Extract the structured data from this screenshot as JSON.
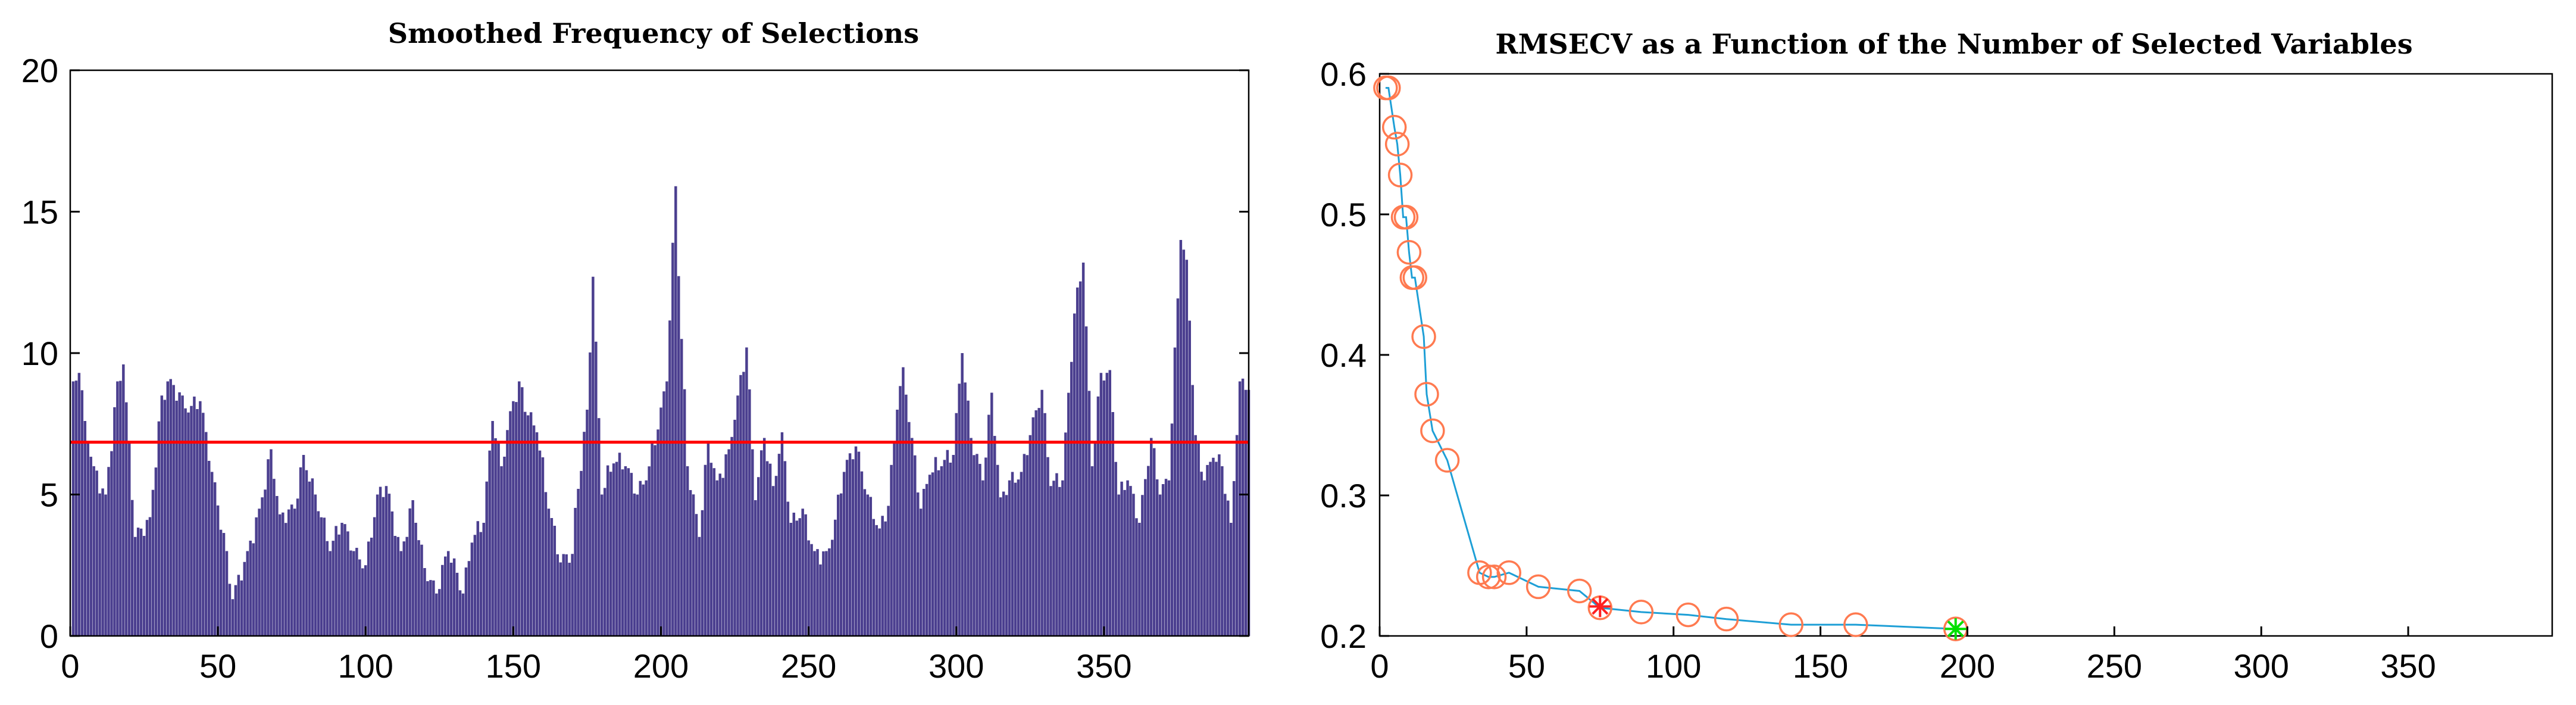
{
  "chart_data": [
    {
      "type": "bar",
      "title": "Smoothed Frequency of Selections",
      "xlabel": "",
      "ylabel": "",
      "xlim": [
        0,
        399
      ],
      "ylim": [
        0,
        20
      ],
      "xticks": [
        0,
        50,
        100,
        150,
        200,
        250,
        300,
        350
      ],
      "yticks": [
        0,
        5,
        10,
        15,
        20
      ],
      "bar_color": "#4b3f8f",
      "threshold": {
        "value": 6.85,
        "color": "#ff0000"
      },
      "peaks": [
        {
          "x": 1,
          "y": 9.0
        },
        {
          "x": 3,
          "y": 9.3
        },
        {
          "x": 5,
          "y": 7.6
        },
        {
          "x": 8,
          "y": 6.0
        },
        {
          "x": 12,
          "y": 5.0
        },
        {
          "x": 16,
          "y": 9.0
        },
        {
          "x": 18,
          "y": 9.6
        },
        {
          "x": 22,
          "y": 3.5
        },
        {
          "x": 27,
          "y": 4.2
        },
        {
          "x": 31,
          "y": 8.5
        },
        {
          "x": 33,
          "y": 9.0
        },
        {
          "x": 38,
          "y": 8.5
        },
        {
          "x": 40,
          "y": 7.9
        },
        {
          "x": 44,
          "y": 8.3
        },
        {
          "x": 48,
          "y": 5.8
        },
        {
          "x": 53,
          "y": 3.0
        },
        {
          "x": 55,
          "y": 1.3
        },
        {
          "x": 60,
          "y": 3.0
        },
        {
          "x": 64,
          "y": 4.5
        },
        {
          "x": 68,
          "y": 6.6
        },
        {
          "x": 71,
          "y": 4.3
        },
        {
          "x": 76,
          "y": 4.5
        },
        {
          "x": 79,
          "y": 6.4
        },
        {
          "x": 83,
          "y": 5.0
        },
        {
          "x": 88,
          "y": 3.0
        },
        {
          "x": 92,
          "y": 4.0
        },
        {
          "x": 96,
          "y": 3.0
        },
        {
          "x": 100,
          "y": 2.5
        },
        {
          "x": 104,
          "y": 5.0
        },
        {
          "x": 107,
          "y": 5.3
        },
        {
          "x": 112,
          "y": 3.0
        },
        {
          "x": 116,
          "y": 4.8
        },
        {
          "x": 120,
          "y": 2.4
        },
        {
          "x": 124,
          "y": 1.5
        },
        {
          "x": 128,
          "y": 3.0
        },
        {
          "x": 133,
          "y": 1.5
        },
        {
          "x": 136,
          "y": 3.3
        },
        {
          "x": 140,
          "y": 4.0
        },
        {
          "x": 143,
          "y": 7.6
        },
        {
          "x": 146,
          "y": 6.0
        },
        {
          "x": 150,
          "y": 8.3
        },
        {
          "x": 152,
          "y": 9.0
        },
        {
          "x": 155,
          "y": 7.8
        },
        {
          "x": 158,
          "y": 7.2
        },
        {
          "x": 162,
          "y": 4.5
        },
        {
          "x": 166,
          "y": 2.6
        },
        {
          "x": 170,
          "y": 2.9
        },
        {
          "x": 172,
          "y": 5.2
        },
        {
          "x": 175,
          "y": 8.0
        },
        {
          "x": 177,
          "y": 12.7
        },
        {
          "x": 180,
          "y": 5.0
        },
        {
          "x": 184,
          "y": 6.1
        },
        {
          "x": 188,
          "y": 6.0
        },
        {
          "x": 192,
          "y": 5.0
        },
        {
          "x": 195,
          "y": 5.5
        },
        {
          "x": 199,
          "y": 7.3
        },
        {
          "x": 202,
          "y": 9.0
        },
        {
          "x": 205,
          "y": 15.9
        },
        {
          "x": 207,
          "y": 10.5
        },
        {
          "x": 209,
          "y": 6.0
        },
        {
          "x": 213,
          "y": 3.5
        },
        {
          "x": 216,
          "y": 6.9
        },
        {
          "x": 219,
          "y": 5.5
        },
        {
          "x": 223,
          "y": 6.6
        },
        {
          "x": 226,
          "y": 8.5
        },
        {
          "x": 229,
          "y": 10.2
        },
        {
          "x": 232,
          "y": 4.8
        },
        {
          "x": 235,
          "y": 7.0
        },
        {
          "x": 238,
          "y": 5.3
        },
        {
          "x": 241,
          "y": 7.2
        },
        {
          "x": 244,
          "y": 4.0
        },
        {
          "x": 248,
          "y": 4.5
        },
        {
          "x": 252,
          "y": 3.0
        },
        {
          "x": 256,
          "y": 3.0
        },
        {
          "x": 258,
          "y": 3.4
        },
        {
          "x": 262,
          "y": 5.8
        },
        {
          "x": 266,
          "y": 6.7
        },
        {
          "x": 270,
          "y": 5.0
        },
        {
          "x": 274,
          "y": 3.8
        },
        {
          "x": 277,
          "y": 4.6
        },
        {
          "x": 280,
          "y": 8.0
        },
        {
          "x": 282,
          "y": 9.5
        },
        {
          "x": 285,
          "y": 7.0
        },
        {
          "x": 288,
          "y": 4.5
        },
        {
          "x": 291,
          "y": 5.7
        },
        {
          "x": 295,
          "y": 6.0
        },
        {
          "x": 299,
          "y": 6.4
        },
        {
          "x": 302,
          "y": 10.0
        },
        {
          "x": 305,
          "y": 7.0
        },
        {
          "x": 309,
          "y": 5.5
        },
        {
          "x": 312,
          "y": 8.6
        },
        {
          "x": 315,
          "y": 4.9
        },
        {
          "x": 318,
          "y": 5.5
        },
        {
          "x": 322,
          "y": 5.8
        },
        {
          "x": 325,
          "y": 7.1
        },
        {
          "x": 329,
          "y": 8.7
        },
        {
          "x": 332,
          "y": 5.3
        },
        {
          "x": 336,
          "y": 5.5
        },
        {
          "x": 340,
          "y": 11.4
        },
        {
          "x": 343,
          "y": 13.2
        },
        {
          "x": 346,
          "y": 6.0
        },
        {
          "x": 349,
          "y": 9.3
        },
        {
          "x": 352,
          "y": 9.4
        },
        {
          "x": 355,
          "y": 5.0
        },
        {
          "x": 358,
          "y": 5.5
        },
        {
          "x": 362,
          "y": 4.0
        },
        {
          "x": 366,
          "y": 7.0
        },
        {
          "x": 369,
          "y": 5.0
        },
        {
          "x": 372,
          "y": 5.5
        },
        {
          "x": 376,
          "y": 14.0
        },
        {
          "x": 378,
          "y": 13.3
        },
        {
          "x": 381,
          "y": 7.1
        },
        {
          "x": 384,
          "y": 5.5
        },
        {
          "x": 387,
          "y": 6.3
        },
        {
          "x": 390,
          "y": 6.0
        },
        {
          "x": 393,
          "y": 4.0
        },
        {
          "x": 396,
          "y": 9.0
        },
        {
          "x": 398,
          "y": 8.7
        }
      ]
    },
    {
      "type": "line",
      "title": "RMSECV as a Function of the Number of Selected Variables",
      "xlabel": "",
      "ylabel": "",
      "xlim": [
        0,
        399
      ],
      "ylim": [
        0.2,
        0.6
      ],
      "xticks": [
        0,
        50,
        100,
        150,
        200,
        250,
        300,
        350
      ],
      "yticks": [
        0.2,
        0.3,
        0.4,
        0.5,
        0.6
      ],
      "yticklabels": [
        "0.2",
        "0.3",
        "0.4",
        "0.5",
        "0.6"
      ],
      "line_color": "#1e9fd6",
      "marker_color": "#ff7a50",
      "x": [
        2,
        3,
        5,
        6,
        7,
        8,
        9,
        10,
        11,
        12,
        15,
        16,
        18,
        23,
        34,
        37,
        39,
        44,
        54,
        68,
        75,
        89,
        105,
        118,
        140,
        162,
        196
      ],
      "y": [
        0.59,
        0.59,
        0.562,
        0.55,
        0.528,
        0.498,
        0.498,
        0.473,
        0.455,
        0.455,
        0.413,
        0.372,
        0.346,
        0.325,
        0.245,
        0.242,
        0.242,
        0.245,
        0.235,
        0.232,
        0.22,
        0.217,
        0.215,
        0.212,
        0.208,
        0.208,
        0.205
      ],
      "highlights": [
        {
          "x": 75,
          "y": 0.221,
          "color": "#ff2020"
        },
        {
          "x": 196,
          "y": 0.205,
          "color": "#00e000"
        }
      ]
    }
  ]
}
